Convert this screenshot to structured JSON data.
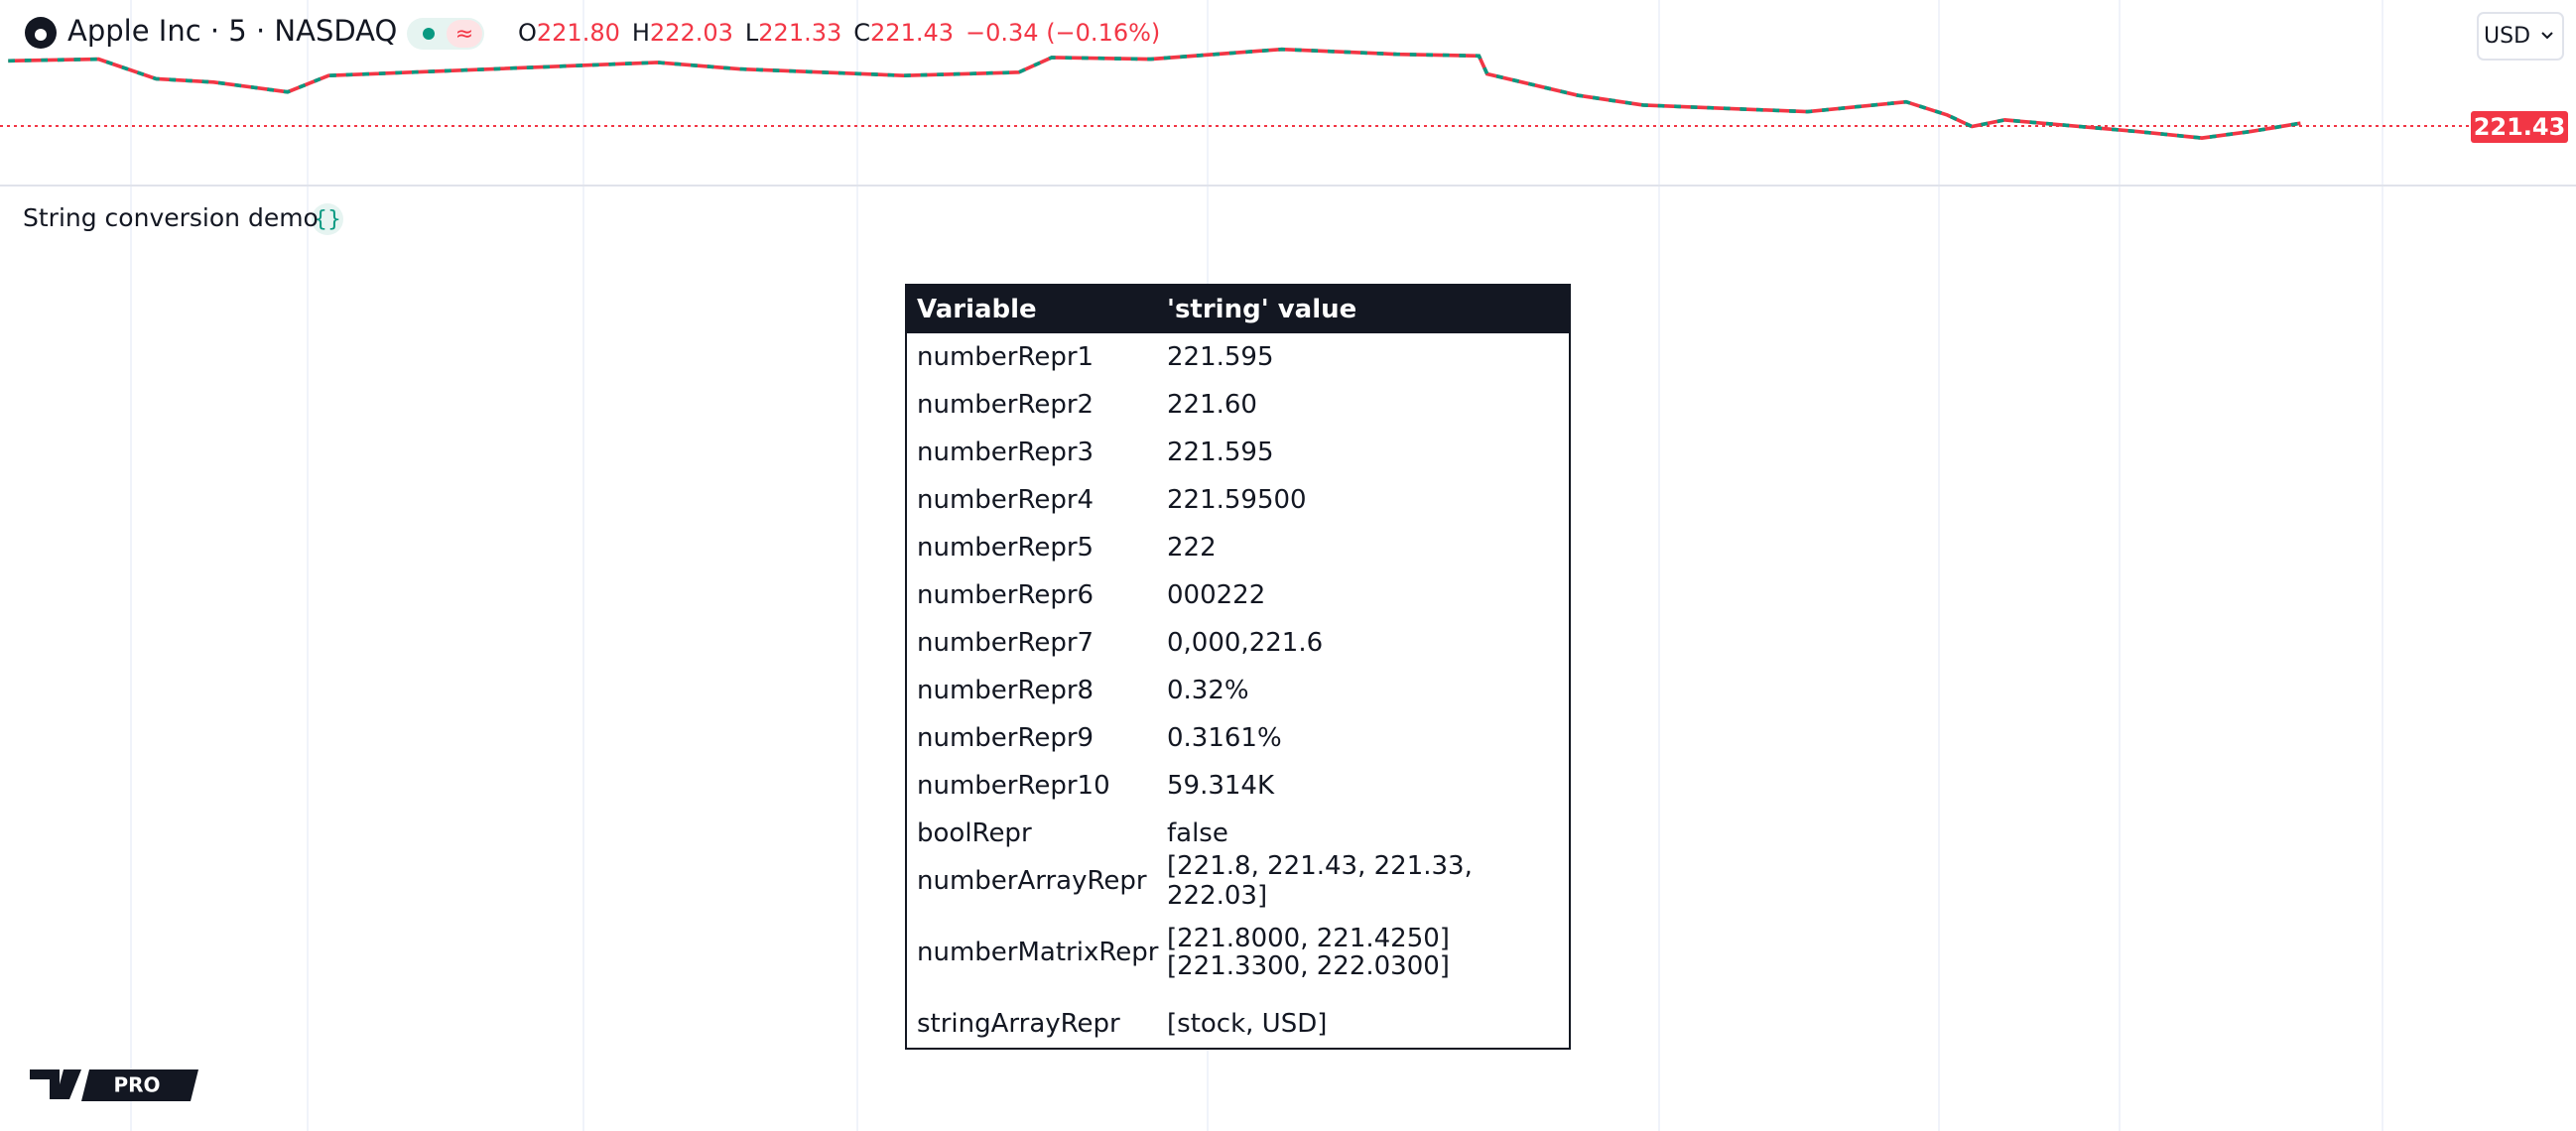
{
  "header": {
    "symbol": "Apple Inc · 5 · NASDAQ",
    "ohlc": [
      {
        "label": "O",
        "value": "221.80"
      },
      {
        "label": "H",
        "value": "222.03"
      },
      {
        "label": "L",
        "value": "221.33"
      },
      {
        "label": "C",
        "value": "221.43"
      }
    ],
    "change": "−0.34 (−0.16%)",
    "currency": "USD"
  },
  "price_label": "221.43",
  "indicator": {
    "title": "String conversion demo"
  },
  "table": {
    "columns": [
      "Variable",
      "'string' value"
    ],
    "rows": [
      [
        "numberRepr1",
        "221.595"
      ],
      [
        "numberRepr2",
        "221.60"
      ],
      [
        "numberRepr3",
        "221.595"
      ],
      [
        "numberRepr4",
        "221.59500"
      ],
      [
        "numberRepr5",
        "222"
      ],
      [
        "numberRepr6",
        "000222"
      ],
      [
        "numberRepr7",
        "0,000,221.6"
      ],
      [
        "numberRepr8",
        "0.32%"
      ],
      [
        "numberRepr9",
        "0.3161%"
      ],
      [
        "numberRepr10",
        "59.314K"
      ],
      [
        "boolRepr",
        "false"
      ],
      [
        "numberArrayRepr",
        "[221.8, 221.43, 221.33, 222.03]"
      ],
      [
        "numberMatrixRepr",
        [
          "[221.8000, 221.4250]",
          "[221.3300, 222.0300]"
        ]
      ],
      [
        "stringArrayRepr",
        "[stock, USD]"
      ]
    ]
  },
  "logo": "PRO"
}
